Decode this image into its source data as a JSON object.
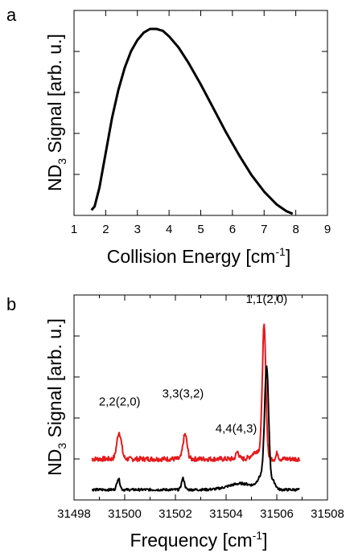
{
  "chart_data": [
    {
      "type": "line",
      "panel_label": "a",
      "xlabel_main": "Collision Energy [cm",
      "xlabel_sup": "-1",
      "xlabel_end": "]",
      "ylabel_pre": "ND",
      "ylabel_sub": "3",
      "ylabel_post": " Signal [arb. u.]",
      "xlim": [
        1,
        9
      ],
      "x_ticks": [
        "1",
        "2",
        "3",
        "4",
        "5",
        "6",
        "7",
        "8",
        "9"
      ],
      "y_ticks_labeled": false,
      "grid": false,
      "series": [
        {
          "color": "#000000",
          "points": [
            [
              1.55,
              0.02
            ],
            [
              1.65,
              0.04
            ],
            [
              1.8,
              0.14
            ],
            [
              2.0,
              0.33
            ],
            [
              2.2,
              0.52
            ],
            [
              2.4,
              0.67
            ],
            [
              2.6,
              0.79
            ],
            [
              2.8,
              0.88
            ],
            [
              3.0,
              0.94
            ],
            [
              3.2,
              0.98
            ],
            [
              3.4,
              1.0
            ],
            [
              3.6,
              1.0
            ],
            [
              3.8,
              0.99
            ],
            [
              4.0,
              0.96
            ],
            [
              4.3,
              0.9
            ],
            [
              4.6,
              0.82
            ],
            [
              5.0,
              0.7
            ],
            [
              5.4,
              0.57
            ],
            [
              5.8,
              0.44
            ],
            [
              6.2,
              0.32
            ],
            [
              6.6,
              0.21
            ],
            [
              7.0,
              0.12
            ],
            [
              7.4,
              0.05
            ],
            [
              7.7,
              0.015
            ],
            [
              7.9,
              0.0
            ]
          ]
        }
      ]
    },
    {
      "type": "line",
      "panel_label": "b",
      "xlabel_main": "Frequency [cm",
      "xlabel_sup": "-1",
      "xlabel_end": "]",
      "ylabel_pre": "ND",
      "ylabel_sub": "3",
      "ylabel_post": " Signal [arb. u.]",
      "xlim": [
        31498,
        31508
      ],
      "x_ticks": [
        "31498",
        "31500",
        "31502",
        "31504",
        "31506",
        "31508"
      ],
      "y_ticks_labeled": false,
      "grid": false,
      "annotations": [
        {
          "text": "1,1(2,0)",
          "x": 31505.6,
          "y": 0.96
        },
        {
          "text": "2,2(2,0)",
          "x": 31499.8,
          "y": 0.46
        },
        {
          "text": "3,3(3,2)",
          "x": 31502.3,
          "y": 0.5
        },
        {
          "text": "4,4(4,3)",
          "x": 31504.4,
          "y": 0.33
        }
      ],
      "series": [
        {
          "color": "#e41a1c",
          "baseline": 0.2,
          "noise": 0.012,
          "x_range": [
            31498.7,
            31506.9
          ],
          "peaks": [
            {
              "x": 31499.78,
              "height": 0.13,
              "width": 0.09
            },
            {
              "x": 31502.38,
              "height": 0.12,
              "width": 0.08
            },
            {
              "x": 31504.45,
              "height": 0.035,
              "width": 0.06
            },
            {
              "x": 31505.5,
              "height": 0.63,
              "width": 0.07
            },
            {
              "x": 31505.25,
              "height": 0.04,
              "width": 0.2
            },
            {
              "x": 31506.02,
              "height": 0.03,
              "width": 0.04
            }
          ]
        },
        {
          "color": "#000000",
          "baseline": 0.05,
          "noise": 0.006,
          "x_range": [
            31498.7,
            31506.9
          ],
          "peaks": [
            {
              "x": 31499.75,
              "height": 0.055,
              "width": 0.06
            },
            {
              "x": 31502.3,
              "height": 0.055,
              "width": 0.06
            },
            {
              "x": 31504.6,
              "height": 0.03,
              "width": 0.5
            },
            {
              "x": 31505.6,
              "height": 0.57,
              "width": 0.08
            },
            {
              "x": 31505.4,
              "height": 0.06,
              "width": 0.15
            },
            {
              "x": 31505.85,
              "height": 0.04,
              "width": 0.1
            }
          ]
        }
      ]
    }
  ]
}
